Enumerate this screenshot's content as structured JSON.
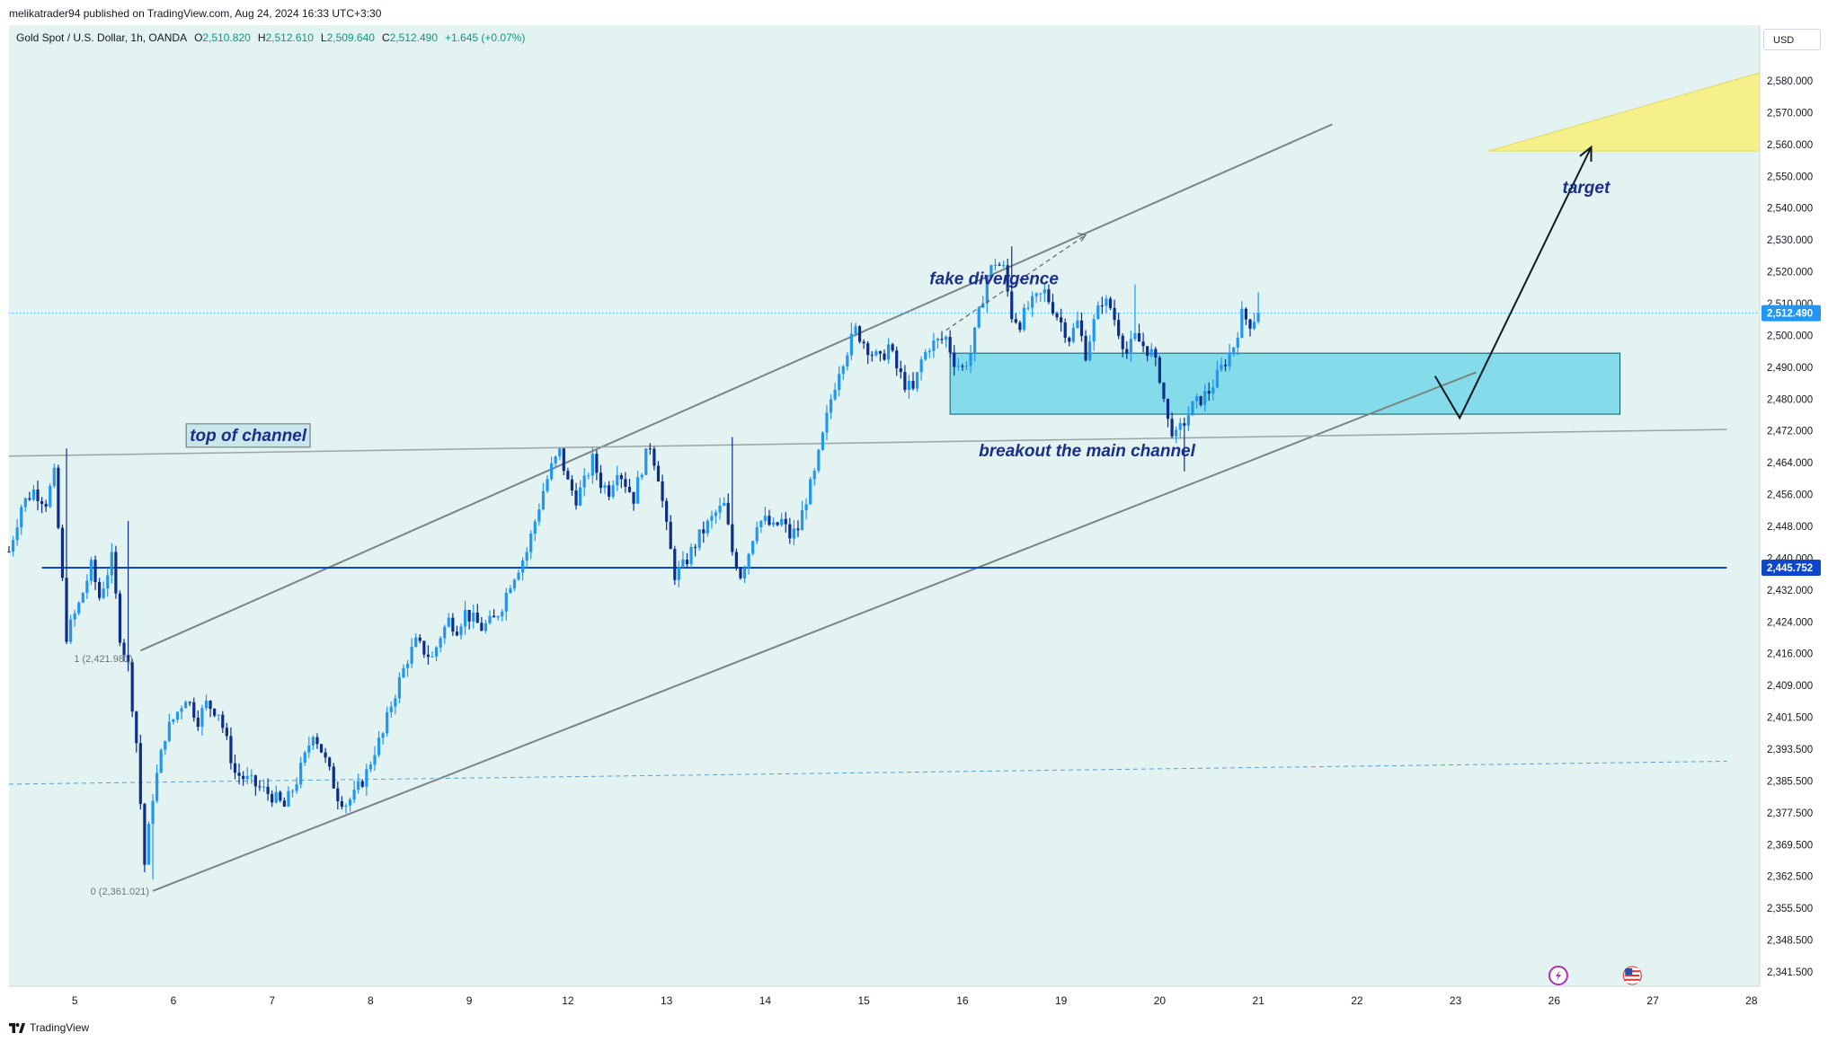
{
  "header": {
    "publisher": "melikatrader94 published on TradingView.com, Aug 24, 2024 16:33 UTC+3:30",
    "symbol": "Gold Spot / U.S. Dollar, 1h, OANDA",
    "ohlc": [
      {
        "label": "O",
        "value": "2,510.820"
      },
      {
        "label": "H",
        "value": "2,512.610"
      },
      {
        "label": "L",
        "value": "2,509.640"
      },
      {
        "label": "C",
        "value": "2,512.490"
      }
    ],
    "change": "+1.645 (+0.07%)"
  },
  "currency": "USD",
  "footer": {
    "brand": "TradingView"
  },
  "colors": {
    "up": "#2196f3",
    "down": "#0d2d8a",
    "background": "#e3f3f2",
    "price_line": "#2196f3",
    "support_line": "#0d47c9",
    "zone_fill": "#84dcea",
    "target_fill": "#f6f08a",
    "annotation_text": "#1a2e8a"
  },
  "chart_data": {
    "type": "candlestick",
    "ylim": [
      2336,
      2588
    ],
    "x_ticks": [
      {
        "label": "5",
        "t": 8
      },
      {
        "label": "6",
        "t": 32
      },
      {
        "label": "7",
        "t": 56
      },
      {
        "label": "8",
        "t": 80
      },
      {
        "label": "9",
        "t": 104
      },
      {
        "label": "12",
        "t": 128
      },
      {
        "label": "13",
        "t": 152
      },
      {
        "label": "14",
        "t": 176
      },
      {
        "label": "15",
        "t": 200
      },
      {
        "label": "16",
        "t": 224
      },
      {
        "label": "19",
        "t": 248
      },
      {
        "label": "20",
        "t": 272
      },
      {
        "label": "21",
        "t": 296
      },
      {
        "label": "22",
        "t": 320
      },
      {
        "label": "23",
        "t": 344
      },
      {
        "label": "26",
        "t": 368
      },
      {
        "label": "27",
        "t": 392
      },
      {
        "label": "28",
        "t": 416
      }
    ],
    "y_ticks": [
      "2,580.000",
      "2,570.000",
      "2,560.000",
      "2,550.000",
      "2,540.000",
      "2,530.000",
      "2,520.000",
      "2,510.000",
      "2,500.000",
      "2,490.000",
      "2,480.000",
      "2,472.000",
      "2,464.000",
      "2,456.000",
      "2,448.000",
      "2,440.000",
      "2,432.000",
      "2,424.000",
      "2,416.000",
      "2,409.000",
      "2,401.500",
      "2,393.500",
      "2,385.500",
      "2,377.500",
      "2,369.500",
      "2,362.500",
      "2,355.500",
      "2,348.500",
      "2,341.500"
    ],
    "price_labels": [
      {
        "text": "2,512.490",
        "price": 2512.49
      },
      {
        "text": "2,445.752",
        "price": 2445.752
      }
    ],
    "close_path": [
      [
        -8,
        2450
      ],
      [
        -5,
        2462
      ],
      [
        -2,
        2466
      ],
      [
        1,
        2463
      ],
      [
        3,
        2470
      ],
      [
        6,
        2428
      ],
      [
        9,
        2436
      ],
      [
        12,
        2446
      ],
      [
        14,
        2438
      ],
      [
        17,
        2448
      ],
      [
        19,
        2428
      ],
      [
        21,
        2420
      ],
      [
        23,
        2400
      ],
      [
        25,
        2368
      ],
      [
        27,
        2386
      ],
      [
        30,
        2402
      ],
      [
        33,
        2408
      ],
      [
        35,
        2412
      ],
      [
        38,
        2406
      ],
      [
        40,
        2410
      ],
      [
        43,
        2408
      ],
      [
        45,
        2400
      ],
      [
        47,
        2392
      ],
      [
        50,
        2390
      ],
      [
        53,
        2388
      ],
      [
        56,
        2386
      ],
      [
        59,
        2383
      ],
      [
        62,
        2390
      ],
      [
        64,
        2396
      ],
      [
        66,
        2403
      ],
      [
        68,
        2398
      ],
      [
        70,
        2392
      ],
      [
        72,
        2386
      ],
      [
        74,
        2384
      ],
      [
        76,
        2386
      ],
      [
        79,
        2392
      ],
      [
        81,
        2398
      ],
      [
        83,
        2402
      ],
      [
        85,
        2410
      ],
      [
        87,
        2416
      ],
      [
        89,
        2422
      ],
      [
        91,
        2426
      ],
      [
        93,
        2424
      ],
      [
        95,
        2422
      ],
      [
        97,
        2428
      ],
      [
        99,
        2432
      ],
      [
        101,
        2430
      ],
      [
        103,
        2434
      ],
      [
        105,
        2432
      ],
      [
        107,
        2430
      ],
      [
        110,
        2432
      ],
      [
        112,
        2436
      ],
      [
        114,
        2442
      ],
      [
        116,
        2446
      ],
      [
        118,
        2450
      ],
      [
        120,
        2458
      ],
      [
        122,
        2466
      ],
      [
        124,
        2472
      ],
      [
        126,
        2476
      ],
      [
        128,
        2468
      ],
      [
        130,
        2464
      ],
      [
        132,
        2468
      ],
      [
        134,
        2474
      ],
      [
        136,
        2468
      ],
      [
        138,
        2466
      ],
      [
        140,
        2472
      ],
      [
        142,
        2468
      ],
      [
        144,
        2464
      ],
      [
        146,
        2472
      ],
      [
        148,
        2478
      ],
      [
        150,
        2470
      ],
      [
        152,
        2456
      ],
      [
        154,
        2444
      ],
      [
        156,
        2446
      ],
      [
        158,
        2450
      ],
      [
        160,
        2454
      ],
      [
        162,
        2457
      ],
      [
        164,
        2460
      ],
      [
        166,
        2462
      ],
      [
        168,
        2450
      ],
      [
        170,
        2444
      ],
      [
        172,
        2450
      ],
      [
        174,
        2458
      ],
      [
        176,
        2458
      ],
      [
        178,
        2456
      ],
      [
        180,
        2458
      ],
      [
        182,
        2454
      ],
      [
        184,
        2456
      ],
      [
        186,
        2464
      ],
      [
        188,
        2470
      ],
      [
        190,
        2480
      ],
      [
        192,
        2490
      ],
      [
        194,
        2498
      ],
      [
        196,
        2503
      ],
      [
        198,
        2508
      ],
      [
        200,
        2505
      ],
      [
        202,
        2502
      ],
      [
        204,
        2500
      ],
      [
        206,
        2504
      ],
      [
        208,
        2498
      ],
      [
        210,
        2494
      ],
      [
        212,
        2492
      ],
      [
        214,
        2500
      ],
      [
        216,
        2504
      ],
      [
        218,
        2505
      ],
      [
        220,
        2506
      ],
      [
        222,
        2500
      ],
      [
        224,
        2498
      ],
      [
        226,
        2502
      ],
      [
        228,
        2512
      ],
      [
        230,
        2522
      ],
      [
        232,
        2526
      ],
      [
        234,
        2524
      ],
      [
        236,
        2512
      ],
      [
        238,
        2510
      ],
      [
        240,
        2514
      ],
      [
        242,
        2516
      ],
      [
        244,
        2518
      ],
      [
        246,
        2514
      ],
      [
        248,
        2510
      ],
      [
        250,
        2506
      ],
      [
        252,
        2510
      ],
      [
        254,
        2502
      ],
      [
        256,
        2510
      ],
      [
        258,
        2516
      ],
      [
        260,
        2514
      ],
      [
        262,
        2508
      ],
      [
        264,
        2502
      ],
      [
        266,
        2506
      ],
      [
        268,
        2504
      ],
      [
        270,
        2502
      ],
      [
        272,
        2496
      ],
      [
        274,
        2484
      ],
      [
        276,
        2480
      ],
      [
        278,
        2484
      ],
      [
        280,
        2488
      ],
      [
        282,
        2490
      ],
      [
        284,
        2492
      ],
      [
        286,
        2496
      ],
      [
        288,
        2500
      ],
      [
        290,
        2504
      ],
      [
        292,
        2512
      ],
      [
        294,
        2510
      ],
      [
        296,
        2512.49
      ]
    ],
    "wick_spikes": [
      [
        6,
        2477
      ],
      [
        13,
        2444
      ],
      [
        21,
        2458
      ],
      [
        27,
        2364
      ],
      [
        168,
        2480
      ],
      [
        197,
        2510
      ],
      [
        236,
        2530
      ],
      [
        266,
        2520
      ],
      [
        278,
        2471
      ],
      [
        296,
        2518
      ]
    ],
    "lines": [
      {
        "name": "channel-upper",
        "p1": [
          24,
          2424
        ],
        "p2": [
          314,
          2562
        ]
      },
      {
        "name": "channel-lower",
        "p1": [
          27,
          2361
        ],
        "p2": [
          349,
          2497
        ]
      },
      {
        "name": "top-of-channel-line",
        "p1": [
          -8,
          2475
        ],
        "p2": [
          410,
          2482
        ]
      },
      {
        "name": "dashed-level",
        "p1": [
          -8,
          2389
        ],
        "p2": [
          410,
          2395
        ]
      },
      {
        "name": "support-2445",
        "p1": [
          0,
          2445.752
        ],
        "p2": [
          410,
          2445.752
        ]
      }
    ],
    "divergence_dash": {
      "p1": [
        220,
        2508
      ],
      "p2": [
        254,
        2533
      ]
    },
    "zone": {
      "t_from": 221,
      "t_to": 384,
      "p_low": 2486,
      "p_high": 2502
    },
    "target_zone": {
      "points": [
        [
          352,
          2555
        ],
        [
          426,
          2578
        ],
        [
          434,
          2555
        ]
      ]
    },
    "path_arrow": {
      "points": [
        [
          339,
          2496
        ],
        [
          345,
          2485
        ],
        [
          377,
          2556
        ]
      ]
    },
    "fib_labels": [
      {
        "text": "1 (2,421.981)",
        "t": 23,
        "price": 2421.981
      },
      {
        "text": "0 (2,361.021)",
        "t": 27,
        "price": 2361.021
      }
    ],
    "annotations": [
      {
        "text": "top of channel",
        "t": 36,
        "price": 2479,
        "boxed": true
      },
      {
        "text": "fake divergence",
        "t": 216,
        "price": 2520
      },
      {
        "text": "breakout the main channel",
        "t": 228,
        "price": 2475
      },
      {
        "text": "target",
        "t": 370,
        "price": 2544
      }
    ],
    "flags": [
      {
        "name": "lightning-icon",
        "t": 369
      },
      {
        "name": "us-flag-icon",
        "t": 387
      }
    ]
  }
}
